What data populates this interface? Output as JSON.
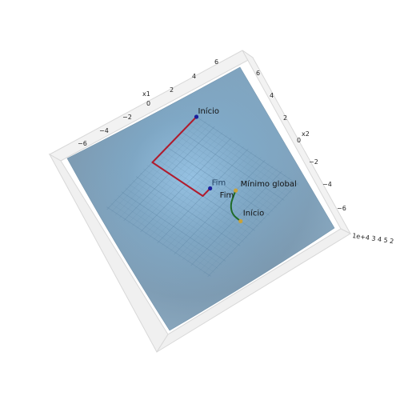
{
  "chart_data": {
    "type": "surface-3d",
    "title": "",
    "axes": {
      "x1": {
        "label": "x1",
        "ticks": [
          "−6",
          "−4",
          "−2",
          "0",
          "2",
          "4",
          "6"
        ]
      },
      "x2": {
        "label": "x2",
        "ticks": [
          "6",
          "4",
          "2",
          "0",
          "−2",
          "−4",
          "−6"
        ]
      },
      "z": {
        "label": "",
        "ticks": [
          "1e+4",
          "4",
          "3",
          "2"
        ],
        "tick_text": "1e+4 3 4 5 2",
        "note": "z tick labels overlap into an unreadable cluster"
      }
    },
    "surface": {
      "color": "#86b9dc",
      "wireframe": true,
      "grid": true
    },
    "paths": [
      {
        "name": "red-path",
        "color": "#b01c2e",
        "points": [
          [
            6,
            6
          ],
          [
            0,
            6
          ],
          [
            0,
            0
          ],
          [
            1,
            0
          ]
        ],
        "start_label": "Início",
        "end_label": "Fim",
        "start_marker_color": "#1a1f9c",
        "end_marker_color": "#1a1f9c"
      },
      {
        "name": "green-path",
        "color": "#1f6b28",
        "points": [
          [
            0,
            -4.5
          ],
          [
            0.1,
            -3.4
          ],
          [
            0.8,
            -2.6
          ],
          [
            1.7,
            -2.2
          ],
          [
            2.2,
            -2.0
          ]
        ],
        "start_label": "Início",
        "end_label": "Fim",
        "start_marker_color": "#c8a23a",
        "end_marker_color": "#c8a23a"
      }
    ],
    "annotations": [
      {
        "text": "Mínimo global",
        "x1": 2.2,
        "x2": -2.0
      }
    ]
  }
}
